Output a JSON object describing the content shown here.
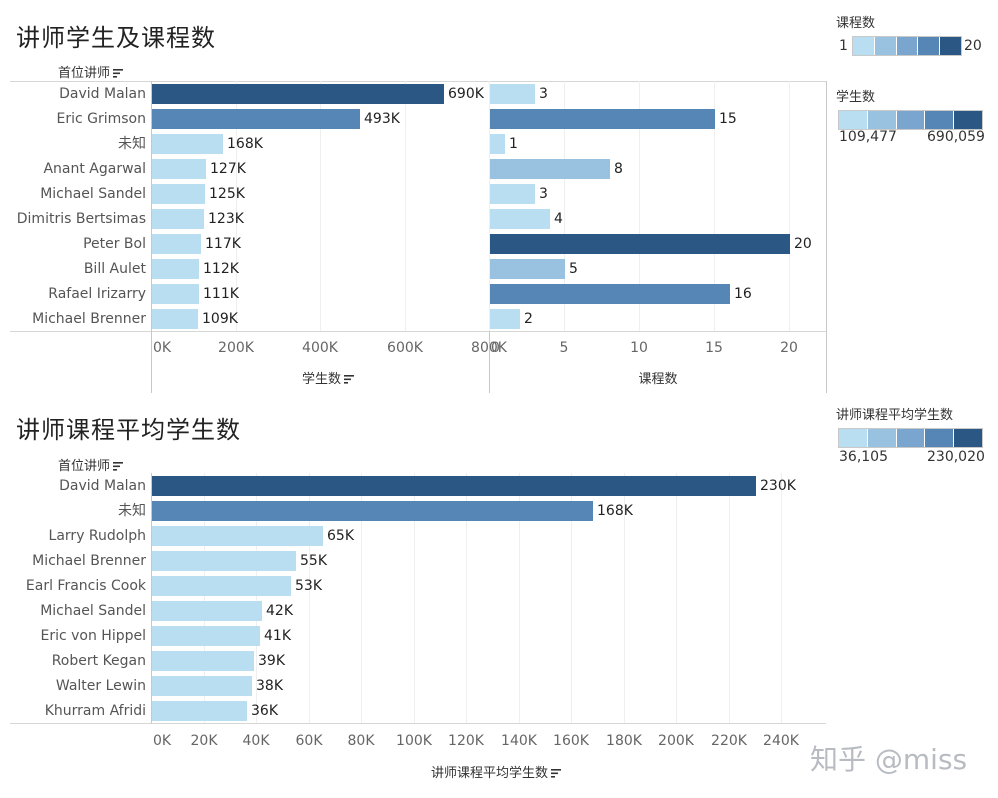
{
  "chart_data": [
    {
      "type": "bar",
      "title": "讲师学生及课程数",
      "row_field_label": "首位讲师",
      "categories": [
        "David Malan",
        "Eric Grimson",
        "未知",
        "Anant Agarwal",
        "Michael Sandel",
        "Dimitris Bertsimas",
        "Peter Bol",
        "Bill Aulet",
        "Rafael Irizarry",
        "Michael Brenner"
      ],
      "series": [
        {
          "name": "学生数",
          "values": [
            690059,
            493000,
            168000,
            127000,
            125000,
            123000,
            117000,
            112000,
            111000,
            109477
          ],
          "value_labels": [
            "690K",
            "493K",
            "168K",
            "127K",
            "125K",
            "123K",
            "117K",
            "112K",
            "111K",
            "109K"
          ],
          "xlabel": "学生数",
          "xlim": [
            0,
            800000
          ],
          "ticks": [
            0,
            200000,
            400000,
            600000,
            800000
          ],
          "tick_labels": [
            "0K",
            "200K",
            "400K",
            "600K",
            "800K"
          ]
        },
        {
          "name": "课程数",
          "values": [
            3,
            15,
            1,
            8,
            3,
            4,
            20,
            5,
            16,
            2
          ],
          "value_labels": [
            "3",
            "15",
            "1",
            "8",
            "3",
            "4",
            "20",
            "5",
            "16",
            "2"
          ],
          "xlabel": "课程数",
          "xlim": [
            0,
            22.5
          ],
          "ticks": [
            0,
            5,
            10,
            15,
            20
          ],
          "tick_labels": [
            "0",
            "5",
            "10",
            "15",
            "20"
          ]
        }
      ]
    },
    {
      "type": "bar",
      "title": "讲师课程平均学生数",
      "row_field_label": "首位讲师",
      "categories": [
        "David Malan",
        "未知",
        "Larry Rudolph",
        "Michael Brenner",
        "Earl Francis Cook",
        "Michael Sandel",
        "Eric von Hippel",
        "Robert Kegan",
        "Walter Lewin",
        "Khurram Afridi"
      ],
      "values": [
        230020,
        168000,
        65000,
        55000,
        53000,
        42000,
        41000,
        39000,
        38000,
        36105
      ],
      "value_labels": [
        "230K",
        "168K",
        "65K",
        "55K",
        "53K",
        "42K",
        "41K",
        "39K",
        "38K",
        "36K"
      ],
      "xlabel": "讲师课程平均学生数",
      "xlim": [
        0,
        257000
      ],
      "ticks": [
        0,
        20000,
        40000,
        60000,
        80000,
        100000,
        120000,
        140000,
        160000,
        180000,
        200000,
        220000,
        240000
      ],
      "tick_labels": [
        "0K",
        "20K",
        "40K",
        "60K",
        "80K",
        "100K",
        "120K",
        "140K",
        "160K",
        "180K",
        "200K",
        "220K",
        "240K"
      ]
    }
  ],
  "legends": {
    "courses": {
      "title": "课程数",
      "min": 1,
      "max": 20,
      "min_label": "1",
      "max_label": "20"
    },
    "students": {
      "title": "学生数",
      "min": 109477,
      "max": 690059,
      "min_label": "109,477",
      "max_label": "690,059"
    },
    "avg": {
      "title": "讲师课程平均学生数",
      "min": 36105,
      "max": 230020,
      "min_label": "36,105",
      "max_label": "230,020"
    }
  },
  "colors": {
    "ramp": [
      "#b9ddf1",
      "#98c2e0",
      "#7aa5cf",
      "#5686b6",
      "#2a5783"
    ]
  },
  "watermark": "知乎 @miss"
}
